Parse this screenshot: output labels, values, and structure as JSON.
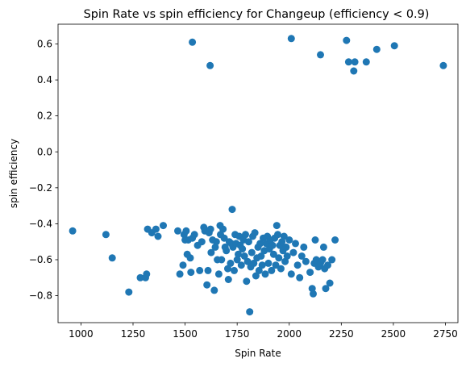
{
  "chart_data": {
    "type": "scatter",
    "title": "Spin Rate vs spin efficiency for Changeup (efficiency < 0.9)",
    "xlabel": "Spin Rate",
    "ylabel": "spin efficiency",
    "xlim": [
      890,
      2810
    ],
    "ylim": [
      -0.95,
      0.71
    ],
    "xticks": [
      1000,
      1250,
      1500,
      1750,
      2000,
      2250,
      2500,
      2750
    ],
    "yticks": [
      -0.8,
      -0.6,
      -0.4,
      -0.2,
      0.0,
      0.2,
      0.4,
      0.6
    ],
    "xtick_labels": [
      "1000",
      "1250",
      "1500",
      "1750",
      "2000",
      "2250",
      "2500",
      "2750"
    ],
    "ytick_labels": [
      "−0.8",
      "−0.6",
      "−0.4",
      "−0.2",
      "0.0",
      "0.2",
      "0.4",
      "0.6"
    ],
    "grid": false,
    "marker_color": "#1f77b4",
    "points": [
      {
        "x": 960,
        "y": -0.44
      },
      {
        "x": 1120,
        "y": -0.46
      },
      {
        "x": 1150,
        "y": -0.59
      },
      {
        "x": 1230,
        "y": -0.78
      },
      {
        "x": 1285,
        "y": -0.7
      },
      {
        "x": 1310,
        "y": -0.7
      },
      {
        "x": 1315,
        "y": -0.68
      },
      {
        "x": 1320,
        "y": -0.43
      },
      {
        "x": 1340,
        "y": -0.45
      },
      {
        "x": 1360,
        "y": -0.43
      },
      {
        "x": 1370,
        "y": -0.47
      },
      {
        "x": 1395,
        "y": -0.41
      },
      {
        "x": 1465,
        "y": -0.44
      },
      {
        "x": 1475,
        "y": -0.68
      },
      {
        "x": 1490,
        "y": -0.63
      },
      {
        "x": 1495,
        "y": -0.46
      },
      {
        "x": 1500,
        "y": -0.49
      },
      {
        "x": 1505,
        "y": -0.44
      },
      {
        "x": 1510,
        "y": -0.57
      },
      {
        "x": 1515,
        "y": -0.49
      },
      {
        "x": 1525,
        "y": -0.59
      },
      {
        "x": 1528,
        "y": -0.67
      },
      {
        "x": 1535,
        "y": -0.48
      },
      {
        "x": 1545,
        "y": -0.46
      },
      {
        "x": 1560,
        "y": -0.52
      },
      {
        "x": 1570,
        "y": -0.66
      },
      {
        "x": 1580,
        "y": -0.5
      },
      {
        "x": 1590,
        "y": -0.42
      },
      {
        "x": 1595,
        "y": -0.44
      },
      {
        "x": 1605,
        "y": -0.74
      },
      {
        "x": 1610,
        "y": -0.66
      },
      {
        "x": 1615,
        "y": -0.45
      },
      {
        "x": 1622,
        "y": -0.43
      },
      {
        "x": 1625,
        "y": -0.56
      },
      {
        "x": 1632,
        "y": -0.49
      },
      {
        "x": 1640,
        "y": -0.77
      },
      {
        "x": 1645,
        "y": -0.53
      },
      {
        "x": 1650,
        "y": -0.5
      },
      {
        "x": 1655,
        "y": -0.6
      },
      {
        "x": 1662,
        "y": -0.68
      },
      {
        "x": 1668,
        "y": -0.41
      },
      {
        "x": 1670,
        "y": -0.46
      },
      {
        "x": 1675,
        "y": -0.6
      },
      {
        "x": 1682,
        "y": -0.43
      },
      {
        "x": 1688,
        "y": -0.48
      },
      {
        "x": 1692,
        "y": -0.53
      },
      {
        "x": 1698,
        "y": -0.55
      },
      {
        "x": 1705,
        "y": -0.65
      },
      {
        "x": 1708,
        "y": -0.71
      },
      {
        "x": 1712,
        "y": -0.5
      },
      {
        "x": 1718,
        "y": -0.62
      },
      {
        "x": 1722,
        "y": -0.51
      },
      {
        "x": 1726,
        "y": -0.32
      },
      {
        "x": 1730,
        "y": -0.53
      },
      {
        "x": 1736,
        "y": -0.66
      },
      {
        "x": 1740,
        "y": -0.46
      },
      {
        "x": 1745,
        "y": -0.51
      },
      {
        "x": 1750,
        "y": -0.6
      },
      {
        "x": 1755,
        "y": -0.57
      },
      {
        "x": 1760,
        "y": -0.47
      },
      {
        "x": 1765,
        "y": -0.52
      },
      {
        "x": 1770,
        "y": -0.63
      },
      {
        "x": 1775,
        "y": -0.54
      },
      {
        "x": 1780,
        "y": -0.49
      },
      {
        "x": 1785,
        "y": -0.58
      },
      {
        "x": 1790,
        "y": -0.46
      },
      {
        "x": 1795,
        "y": -0.72
      },
      {
        "x": 1800,
        "y": -0.61
      },
      {
        "x": 1805,
        "y": -0.5
      },
      {
        "x": 1810,
        "y": -0.89
      },
      {
        "x": 1815,
        "y": -0.64
      },
      {
        "x": 1820,
        "y": -0.56
      },
      {
        "x": 1825,
        "y": -0.47
      },
      {
        "x": 1830,
        "y": -0.62
      },
      {
        "x": 1835,
        "y": -0.45
      },
      {
        "x": 1840,
        "y": -0.69
      },
      {
        "x": 1845,
        "y": -0.59
      },
      {
        "x": 1850,
        "y": -0.53
      },
      {
        "x": 1855,
        "y": -0.66
      },
      {
        "x": 1860,
        "y": -0.51
      },
      {
        "x": 1865,
        "y": -0.58
      },
      {
        "x": 1870,
        "y": -0.63
      },
      {
        "x": 1875,
        "y": -0.48
      },
      {
        "x": 1880,
        "y": -0.55
      },
      {
        "x": 1885,
        "y": -0.68
      },
      {
        "x": 1890,
        "y": -0.51
      },
      {
        "x": 1895,
        "y": -0.47
      },
      {
        "x": 1900,
        "y": -0.62
      },
      {
        "x": 1905,
        "y": -0.54
      },
      {
        "x": 1910,
        "y": -0.49
      },
      {
        "x": 1915,
        "y": -0.66
      },
      {
        "x": 1920,
        "y": -0.52
      },
      {
        "x": 1925,
        "y": -0.57
      },
      {
        "x": 1930,
        "y": -0.48
      },
      {
        "x": 1935,
        "y": -0.63
      },
      {
        "x": 1940,
        "y": -0.41
      },
      {
        "x": 1945,
        "y": -0.46
      },
      {
        "x": 1950,
        "y": -0.59
      },
      {
        "x": 1955,
        "y": -0.52
      },
      {
        "x": 1960,
        "y": -0.65
      },
      {
        "x": 1965,
        "y": -0.5
      },
      {
        "x": 1970,
        "y": -0.55
      },
      {
        "x": 1975,
        "y": -0.47
      },
      {
        "x": 1980,
        "y": -0.61
      },
      {
        "x": 1985,
        "y": -0.53
      },
      {
        "x": 1990,
        "y": -0.58
      },
      {
        "x": 2000,
        "y": -0.49
      },
      {
        "x": 2010,
        "y": -0.68
      },
      {
        "x": 2020,
        "y": -0.56
      },
      {
        "x": 2030,
        "y": -0.51
      },
      {
        "x": 2040,
        "y": -0.63
      },
      {
        "x": 2050,
        "y": -0.7
      },
      {
        "x": 2060,
        "y": -0.58
      },
      {
        "x": 2070,
        "y": -0.53
      },
      {
        "x": 2080,
        "y": -0.61
      },
      {
        "x": 2100,
        "y": -0.67
      },
      {
        "x": 2110,
        "y": -0.76
      },
      {
        "x": 2115,
        "y": -0.79
      },
      {
        "x": 2120,
        "y": -0.62
      },
      {
        "x": 2125,
        "y": -0.49
      },
      {
        "x": 2130,
        "y": -0.6
      },
      {
        "x": 2140,
        "y": -0.64
      },
      {
        "x": 2150,
        "y": -0.62
      },
      {
        "x": 2160,
        "y": -0.6
      },
      {
        "x": 2165,
        "y": -0.53
      },
      {
        "x": 2170,
        "y": -0.65
      },
      {
        "x": 2175,
        "y": -0.76
      },
      {
        "x": 2185,
        "y": -0.63
      },
      {
        "x": 2195,
        "y": -0.73
      },
      {
        "x": 2205,
        "y": -0.6
      },
      {
        "x": 2220,
        "y": -0.49
      },
      {
        "x": 1535,
        "y": 0.61
      },
      {
        "x": 1620,
        "y": 0.48
      },
      {
        "x": 2010,
        "y": 0.63
      },
      {
        "x": 2150,
        "y": 0.54
      },
      {
        "x": 2275,
        "y": 0.62
      },
      {
        "x": 2285,
        "y": 0.5
      },
      {
        "x": 2310,
        "y": 0.45
      },
      {
        "x": 2315,
        "y": 0.5
      },
      {
        "x": 2370,
        "y": 0.5
      },
      {
        "x": 2420,
        "y": 0.57
      },
      {
        "x": 2505,
        "y": 0.59
      },
      {
        "x": 2740,
        "y": 0.48
      }
    ]
  }
}
